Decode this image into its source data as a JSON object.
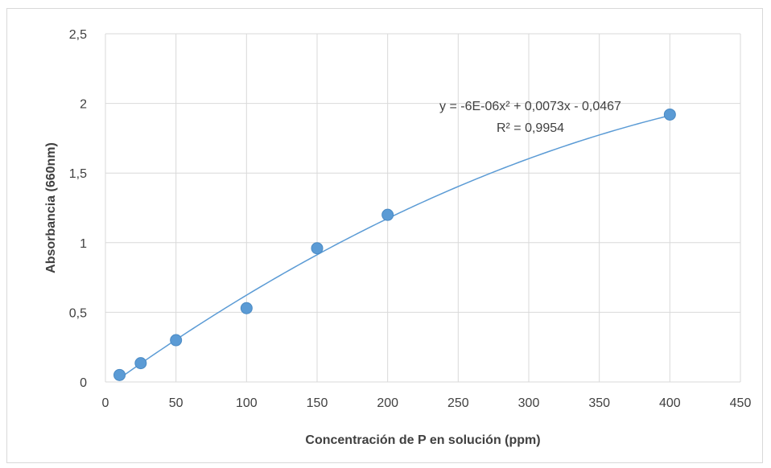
{
  "chart_data": {
    "type": "scatter",
    "title": "",
    "xlabel": "Concentración de P en solución (ppm)",
    "ylabel": "Absorbancia (660nm)",
    "xlim": [
      0,
      450
    ],
    "ylim": [
      0,
      2.5
    ],
    "x_ticks": [
      "0",
      "50",
      "100",
      "150",
      "200",
      "250",
      "300",
      "350",
      "400",
      "450"
    ],
    "y_ticks": [
      "0",
      "0,5",
      "1",
      "1,5",
      "2",
      "2,5"
    ],
    "grid": true,
    "legend": "none",
    "points": [
      {
        "x": 10,
        "y": 0.05
      },
      {
        "x": 25,
        "y": 0.135
      },
      {
        "x": 50,
        "y": 0.3
      },
      {
        "x": 100,
        "y": 0.53
      },
      {
        "x": 150,
        "y": 0.96
      },
      {
        "x": 200,
        "y": 1.2
      },
      {
        "x": 400,
        "y": 1.92
      }
    ],
    "trendline": {
      "type": "polynomial",
      "order": 2,
      "coefficients": {
        "a": -6e-06,
        "b": 0.0073,
        "c": -0.0467
      },
      "equation_label": "y = -6E-06x² + 0,0073x - 0,0467",
      "r2_label": "R² = 0,9954"
    },
    "colors": {
      "marker": "#5b9bd5",
      "trendline": "#5b9bd5",
      "grid": "#d9d9d9"
    }
  }
}
